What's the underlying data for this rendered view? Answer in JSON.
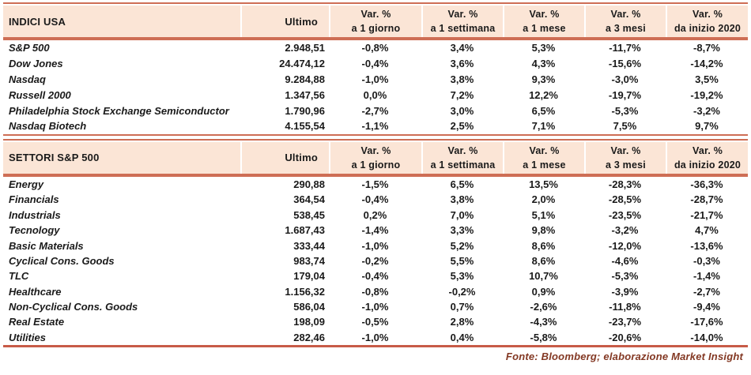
{
  "colors": {
    "accent_line": "#CE6E55",
    "bottom_line": "#C75B47",
    "header_fill": "#FBE5D6",
    "text": "#1A1A1A",
    "footer_text": "#833823"
  },
  "tables": [
    {
      "title": "INDICI USA",
      "ultimo_label": "Ultimo",
      "var_headers": [
        {
          "line1": "Var. %",
          "line2": "a 1 giorno"
        },
        {
          "line1": "Var. %",
          "line2": "a 1 settimana"
        },
        {
          "line1": "Var. %",
          "line2": "a 1 mese"
        },
        {
          "line1": "Var. %",
          "line2": "a 3 mesi"
        },
        {
          "line1": "Var. %",
          "line2": "da inizio 2020"
        }
      ],
      "rows": [
        {
          "name": "S&P 500",
          "ultimo": "2.948,51",
          "vars": [
            "-0,8%",
            "3,4%",
            "5,3%",
            "-11,7%",
            "-8,7%"
          ]
        },
        {
          "name": "Dow Jones",
          "ultimo": "24.474,12",
          "vars": [
            "-0,4%",
            "3,6%",
            "4,3%",
            "-15,6%",
            "-14,2%"
          ]
        },
        {
          "name": "Nasdaq",
          "ultimo": "9.284,88",
          "vars": [
            "-1,0%",
            "3,8%",
            "9,3%",
            "-3,0%",
            "3,5%"
          ]
        },
        {
          "name": "Russell 2000",
          "ultimo": "1.347,56",
          "vars": [
            "0,0%",
            "7,2%",
            "12,2%",
            "-19,7%",
            "-19,2%"
          ]
        },
        {
          "name": "Philadelphia Stock Exchange Semiconductor",
          "ultimo": "1.790,96",
          "vars": [
            "-2,7%",
            "3,0%",
            "6,5%",
            "-5,3%",
            "-3,2%"
          ]
        },
        {
          "name": "Nasdaq Biotech",
          "ultimo": "4.155,54",
          "vars": [
            "-1,1%",
            "2,5%",
            "7,1%",
            "7,5%",
            "9,7%"
          ]
        }
      ]
    },
    {
      "title": "SETTORI S&P 500",
      "ultimo_label": "Ultimo",
      "var_headers": [
        {
          "line1": "Var. %",
          "line2": "a 1 giorno"
        },
        {
          "line1": "Var. %",
          "line2": "a 1 settimana"
        },
        {
          "line1": "Var. %",
          "line2": "a 1 mese"
        },
        {
          "line1": "Var. %",
          "line2": "a 3 mesi"
        },
        {
          "line1": "Var. %",
          "line2": "da inizio 2020"
        }
      ],
      "rows": [
        {
          "name": "Energy",
          "ultimo": "290,88",
          "vars": [
            "-1,5%",
            "6,5%",
            "13,5%",
            "-28,3%",
            "-36,3%"
          ]
        },
        {
          "name": "Financials",
          "ultimo": "364,54",
          "vars": [
            "-0,4%",
            "3,8%",
            "2,0%",
            "-28,5%",
            "-28,7%"
          ]
        },
        {
          "name": "Industrials",
          "ultimo": "538,45",
          "vars": [
            "0,2%",
            "7,0%",
            "5,1%",
            "-23,5%",
            "-21,7%"
          ]
        },
        {
          "name": "Tecnology",
          "ultimo": "1.687,43",
          "vars": [
            "-1,4%",
            "3,3%",
            "9,8%",
            "-3,2%",
            "4,7%"
          ]
        },
        {
          "name": "Basic Materials",
          "ultimo": "333,44",
          "vars": [
            "-1,0%",
            "5,2%",
            "8,6%",
            "-12,0%",
            "-13,6%"
          ]
        },
        {
          "name": "Cyclical Cons. Goods",
          "ultimo": "983,74",
          "vars": [
            "-0,2%",
            "5,5%",
            "8,6%",
            "-4,6%",
            "-0,3%"
          ]
        },
        {
          "name": "TLC",
          "ultimo": "179,04",
          "vars": [
            "-0,4%",
            "5,3%",
            "10,7%",
            "-5,3%",
            "-1,4%"
          ]
        },
        {
          "name": "Healthcare",
          "ultimo": "1.156,32",
          "vars": [
            "-0,8%",
            "-0,2%",
            "0,9%",
            "-3,9%",
            "-2,7%"
          ]
        },
        {
          "name": "Non-Cyclical Cons. Goods",
          "ultimo": "586,04",
          "vars": [
            "-1,0%",
            "0,7%",
            "-2,6%",
            "-11,8%",
            "-9,4%"
          ]
        },
        {
          "name": "Real Estate",
          "ultimo": "198,09",
          "vars": [
            "-0,5%",
            "2,8%",
            "-4,3%",
            "-23,7%",
            "-17,6%"
          ]
        },
        {
          "name": "Utilities",
          "ultimo": "282,46",
          "vars": [
            "-1,0%",
            "0,4%",
            "-5,8%",
            "-20,6%",
            "-14,0%"
          ]
        }
      ]
    }
  ],
  "footer": {
    "text": "Fonte: Bloomberg; elaborazione Market Insight"
  }
}
